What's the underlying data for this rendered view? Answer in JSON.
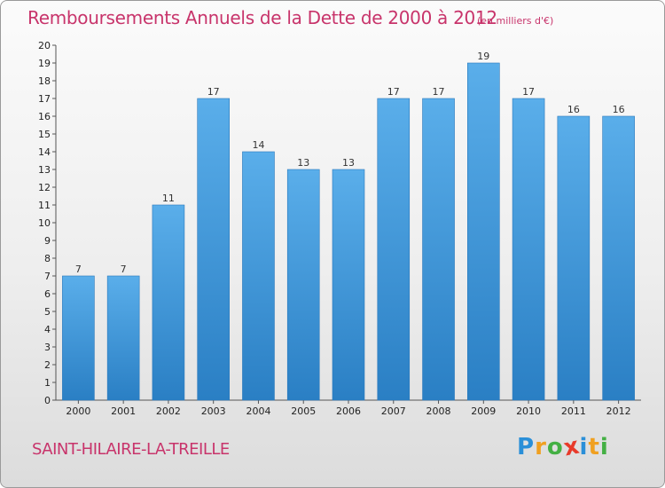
{
  "title": "Remboursements Annuels de la Dette de 2000 à 2012",
  "unit": "(en milliers d'€)",
  "place": "SAINT-HILAIRE-LA-TREILLE",
  "logo": {
    "text": "Proxiti",
    "letters": [
      "P",
      "r",
      "o",
      "x",
      "i",
      "t",
      "i"
    ],
    "letter_colors": [
      "#2a8fd8",
      "#f0a020",
      "#44b044",
      "#e83a2a",
      "#2a8fd8",
      "#f0a020",
      "#44b044"
    ]
  },
  "colors": {
    "accent": "#c8346b",
    "bar_top": "#5aaeea",
    "bar_bottom": "#2a7fc4"
  },
  "chart_data": {
    "type": "bar",
    "categories": [
      "2000",
      "2001",
      "2002",
      "2003",
      "2004",
      "2005",
      "2006",
      "2007",
      "2008",
      "2009",
      "2010",
      "2011",
      "2012"
    ],
    "values": [
      7,
      7,
      11,
      17,
      14,
      13,
      13,
      17,
      17,
      19,
      17,
      16,
      16
    ],
    "data_labels": [
      "7",
      "7",
      "11",
      "17",
      "14",
      "13",
      "13",
      "17",
      "17",
      "19",
      "17",
      "16",
      "16"
    ],
    "y_ticks": [
      0,
      1,
      2,
      3,
      4,
      5,
      6,
      7,
      8,
      9,
      10,
      11,
      12,
      13,
      14,
      15,
      16,
      17,
      18,
      19,
      20
    ],
    "ylim": [
      0,
      20
    ],
    "xlabel": "",
    "ylabel": "",
    "grid": false,
    "legend": "none"
  }
}
